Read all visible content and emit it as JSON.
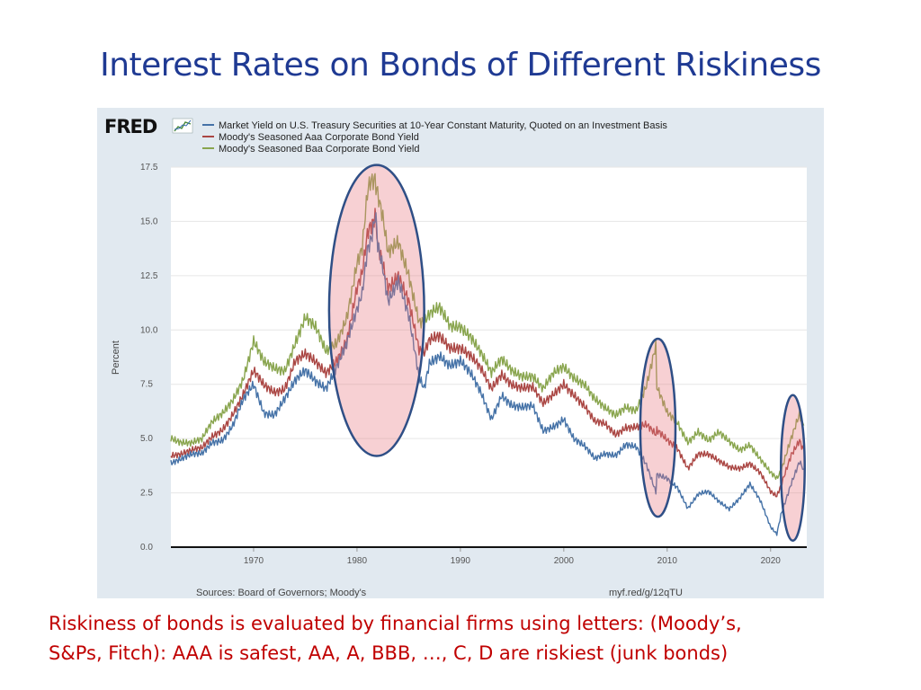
{
  "slide": {
    "title": "Interest Rates on Bonds of Different Riskiness",
    "caption_line1": "Riskiness of bonds is evaluated by financial firms using letters: (Moody’s,",
    "caption_line2": "S&Ps, Fitch): AAA is safest, AA, A, BBB, …, C, D are riskiest (junk bonds)"
  },
  "chart_data": {
    "type": "line",
    "logo": "FRED",
    "ylabel": "Percent",
    "source": "Sources: Board of Governors; Moody's",
    "link": "myf.red/g/12qTU",
    "xlim": [
      1962,
      2023.5
    ],
    "ylim": [
      0,
      17.5
    ],
    "x_ticks": [
      1970,
      1980,
      1990,
      2000,
      2010,
      2020
    ],
    "y_ticks": [
      "0.0",
      "2.5",
      "5.0",
      "7.5",
      "10.0",
      "12.5",
      "15.0",
      "17.5"
    ],
    "grid": true,
    "legend_position": "top",
    "series": [
      {
        "name": "Market Yield on U.S. Treasury Securities at 10-Year Constant Maturity, Quoted on an Investment Basis",
        "color": "#4572a7",
        "x": [
          1962,
          1963,
          1964,
          1965,
          1966,
          1967,
          1968,
          1969,
          1970,
          1971,
          1972,
          1973,
          1974,
          1975,
          1976,
          1977,
          1978,
          1979,
          1980,
          1980.5,
          1981,
          1981.75,
          1982,
          1982.5,
          1983,
          1984,
          1985,
          1986,
          1986.5,
          1987,
          1988,
          1989,
          1990,
          1991,
          1992,
          1993,
          1994,
          1995,
          1996,
          1997,
          1998,
          1999,
          2000,
          2001,
          2002,
          2003,
          2004,
          2005,
          2006,
          2007,
          2008,
          2008.9,
          2009,
          2010,
          2011,
          2012,
          2013,
          2014,
          2015,
          2016,
          2017,
          2018,
          2019,
          2020,
          2020.6,
          2021,
          2022,
          2022.8,
          2023.2
        ],
        "values": [
          3.9,
          4.0,
          4.2,
          4.3,
          4.9,
          5.0,
          5.6,
          6.7,
          7.4,
          6.2,
          6.2,
          6.9,
          7.6,
          8.0,
          7.6,
          7.4,
          8.4,
          9.4,
          10.8,
          11.5,
          13.5,
          15.3,
          14.0,
          13.0,
          11.5,
          12.4,
          10.6,
          7.7,
          7.2,
          8.4,
          8.9,
          8.5,
          8.6,
          7.9,
          7.0,
          5.9,
          7.1,
          6.6,
          6.4,
          6.4,
          5.3,
          5.6,
          6.0,
          5.0,
          4.6,
          4.0,
          4.3,
          4.3,
          4.8,
          4.6,
          3.7,
          2.5,
          3.3,
          3.2,
          2.8,
          1.8,
          2.4,
          2.5,
          2.1,
          1.8,
          2.3,
          2.9,
          2.1,
          0.9,
          0.6,
          1.5,
          3.0,
          4.0,
          3.6
        ]
      },
      {
        "name": "Moody's Seasoned Aaa Corporate Bond Yield",
        "color": "#aa4643",
        "x": [
          1962,
          1963,
          1964,
          1965,
          1966,
          1967,
          1968,
          1969,
          1970,
          1971,
          1972,
          1973,
          1974,
          1975,
          1976,
          1977,
          1978,
          1979,
          1980,
          1980.5,
          1981,
          1981.75,
          1982,
          1982.5,
          1983,
          1984,
          1985,
          1986,
          1986.5,
          1987,
          1988,
          1989,
          1990,
          1991,
          1992,
          1993,
          1994,
          1995,
          1996,
          1997,
          1998,
          1999,
          2000,
          2001,
          2002,
          2003,
          2004,
          2005,
          2006,
          2007,
          2008,
          2008.9,
          2009,
          2010,
          2011,
          2012,
          2013,
          2014,
          2015,
          2016,
          2017,
          2018,
          2019,
          2020,
          2020.6,
          2021,
          2022,
          2022.8,
          2023.2
        ],
        "values": [
          4.3,
          4.3,
          4.4,
          4.5,
          5.1,
          5.5,
          6.2,
          7.0,
          8.0,
          7.4,
          7.2,
          7.4,
          8.6,
          8.8,
          8.4,
          8.0,
          8.7,
          9.6,
          11.9,
          12.5,
          14.2,
          15.5,
          13.8,
          13.0,
          12.0,
          12.7,
          11.4,
          9.0,
          8.8,
          9.4,
          9.7,
          9.3,
          9.3,
          8.8,
          8.1,
          7.2,
          8.0,
          7.6,
          7.4,
          7.3,
          6.5,
          7.0,
          7.6,
          7.1,
          6.5,
          5.7,
          5.6,
          5.2,
          5.6,
          5.6,
          5.6,
          5.1,
          5.3,
          4.9,
          4.6,
          3.7,
          4.3,
          4.2,
          3.9,
          3.7,
          3.7,
          3.9,
          3.4,
          2.5,
          2.3,
          2.8,
          4.3,
          5.0,
          4.5
        ]
      },
      {
        "name": "Moody's Seasoned Baa Corporate Bond Yield",
        "color": "#89a54e",
        "x": [
          1962,
          1963,
          1964,
          1965,
          1966,
          1967,
          1968,
          1969,
          1970,
          1971,
          1972,
          1973,
          1974,
          1975,
          1976,
          1977,
          1978,
          1979,
          1980,
          1980.5,
          1981,
          1981.75,
          1982,
          1982.5,
          1983,
          1984,
          1985,
          1986,
          1986.5,
          1987,
          1988,
          1989,
          1990,
          1991,
          1992,
          1993,
          1994,
          1995,
          1996,
          1997,
          1998,
          1999,
          2000,
          2001,
          2002,
          2003,
          2004,
          2005,
          2006,
          2007,
          2008,
          2008.9,
          2009,
          2010,
          2011,
          2012,
          2013,
          2014,
          2015,
          2016,
          2017,
          2018,
          2019,
          2020,
          2020.6,
          2021,
          2022,
          2022.8,
          2023.2
        ],
        "values": [
          5.1,
          4.9,
          4.8,
          4.9,
          5.7,
          6.2,
          6.9,
          7.8,
          9.4,
          8.4,
          8.2,
          8.2,
          9.5,
          10.6,
          10.0,
          8.9,
          9.4,
          10.7,
          13.2,
          13.8,
          16.2,
          17.2,
          16.0,
          15.0,
          13.5,
          14.2,
          12.7,
          10.4,
          10.3,
          10.6,
          10.9,
          10.2,
          10.3,
          9.8,
          8.9,
          7.9,
          8.6,
          8.2,
          8.0,
          7.9,
          7.2,
          7.9,
          8.3,
          7.9,
          7.6,
          6.8,
          6.3,
          6.0,
          6.5,
          6.4,
          7.5,
          9.2,
          7.3,
          6.1,
          5.7,
          4.9,
          5.4,
          4.9,
          5.2,
          4.8,
          4.5,
          4.8,
          4.1,
          3.4,
          3.1,
          3.4,
          5.0,
          6.2,
          5.6
        ]
      }
    ],
    "highlights": [
      {
        "x_range": [
          1977.3,
          1986.5
        ],
        "y_range": [
          4.2,
          17.6
        ]
      },
      {
        "x_range": [
          2007.4,
          2010.8
        ],
        "y_range": [
          1.4,
          9.6
        ]
      },
      {
        "x_range": [
          2021.0,
          2023.3
        ],
        "y_range": [
          0.3,
          7.0
        ]
      }
    ]
  }
}
